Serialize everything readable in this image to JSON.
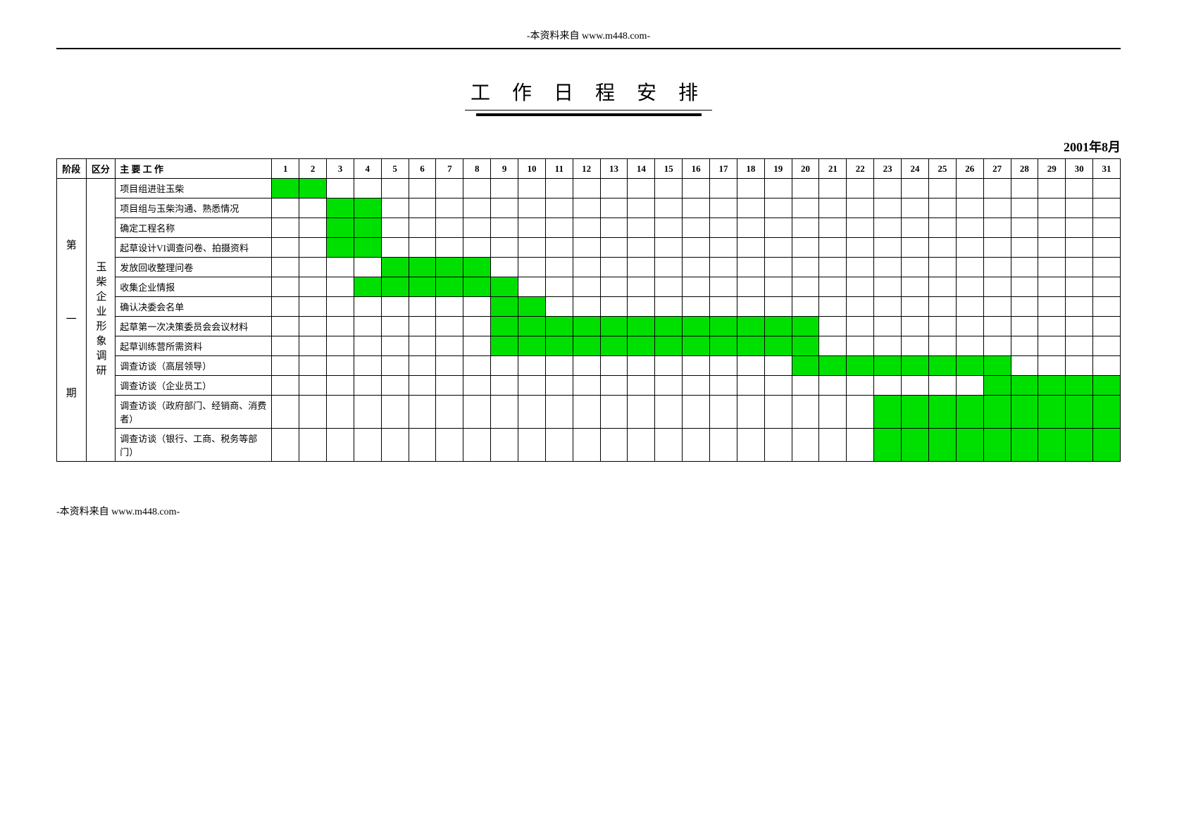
{
  "header_note": "-本资料来自 www.m448.com-",
  "title": "工 作 日 程 安 排",
  "date_label": "2001年8月",
  "columns": {
    "phase": "阶段",
    "category": "区分",
    "task": "主 要 工 作"
  },
  "days": [
    1,
    2,
    3,
    4,
    5,
    6,
    7,
    8,
    9,
    10,
    11,
    12,
    13,
    14,
    15,
    16,
    17,
    18,
    19,
    20,
    21,
    22,
    23,
    24,
    25,
    26,
    27,
    28,
    29,
    30,
    31
  ],
  "phase_label": "第一期",
  "category_label": "玉柴企业形象调研",
  "fill_color": "#00e000",
  "border_color": "#000000",
  "background_color": "#ffffff",
  "tasks": [
    {
      "name": "项目组进驻玉柴",
      "start": 1,
      "end": 2
    },
    {
      "name": "项目组与玉柴沟通、熟悉情况",
      "start": 3,
      "end": 4
    },
    {
      "name": "确定工程名称",
      "start": 3,
      "end": 4
    },
    {
      "name": "起草设计VI调查问卷、拍摄资料",
      "start": 3,
      "end": 4
    },
    {
      "name": "发放回收整理问卷",
      "start": 5,
      "end": 8
    },
    {
      "name": "收集企业情报",
      "start": 4,
      "end": 9
    },
    {
      "name": "确认决委会名单",
      "start": 9,
      "end": 10
    },
    {
      "name": "起草第一次决策委员会会议材料",
      "start": 9,
      "end": 20
    },
    {
      "name": "起草训练营所需资料",
      "start": 9,
      "end": 20
    },
    {
      "name": "调查访谈（高层领导）",
      "start": 20,
      "end": 27
    },
    {
      "name": "调查访谈（企业员工）",
      "start": 27,
      "end": 31
    },
    {
      "name": "调查访谈（政府部门、经销商、消费者）",
      "start": 23,
      "end": 31
    },
    {
      "name": "调查访谈（银行、工商、税务等部门）",
      "start": 23,
      "end": 31
    }
  ],
  "footer_note": "-本资料来自 www.m448.com-"
}
